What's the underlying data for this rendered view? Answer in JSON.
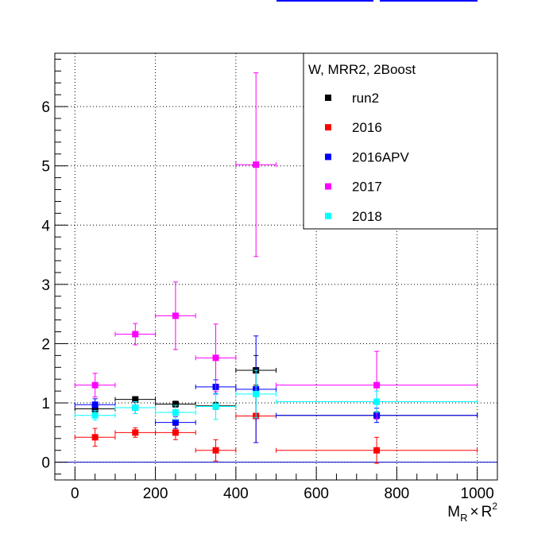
{
  "chart_data": {
    "type": "scatter",
    "legend": {
      "title": "W, MRR2, 2Boost",
      "placement": "top-right"
    },
    "xlabel": {
      "main": "M",
      "sub": "R",
      "times": "×",
      "var": "R",
      "sup": "2"
    },
    "ylabel": "",
    "xlim": [
      -50,
      1050
    ],
    "ylim": [
      -0.3,
      6.9
    ],
    "x_ticks": [
      0,
      200,
      400,
      600,
      800,
      1000
    ],
    "y_ticks": [
      0,
      1,
      2,
      3,
      4,
      5,
      6
    ],
    "grid": true,
    "reference_line": {
      "y": 0,
      "color": "#0000cc"
    },
    "bins": [
      [
        0,
        100
      ],
      [
        100,
        200
      ],
      [
        200,
        300
      ],
      [
        300,
        400
      ],
      [
        400,
        500
      ],
      [
        500,
        1000
      ]
    ],
    "series": [
      {
        "name": "run2",
        "color": "#000000",
        "values": [
          0.9,
          1.06,
          0.98,
          0.95,
          1.55,
          0.79
        ],
        "errors": [
          0.05,
          0.04,
          0.05,
          0.06,
          0.25,
          0.06
        ]
      },
      {
        "name": "2016",
        "color": "#ff0000",
        "values": [
          0.42,
          0.5,
          0.5,
          0.2,
          0.78,
          0.2
        ],
        "errors": [
          0.15,
          0.08,
          0.12,
          0.18,
          0.45,
          0.22
        ]
      },
      {
        "name": "2016APV",
        "color": "#0000ff",
        "values": [
          0.97,
          0.92,
          0.67,
          1.27,
          1.23,
          0.79
        ],
        "errors": [
          0.1,
          0.1,
          0.1,
          0.12,
          0.9,
          0.12
        ]
      },
      {
        "name": "2017",
        "color": "#ff00ff",
        "values": [
          1.3,
          2.16,
          2.47,
          1.76,
          5.02,
          1.3
        ],
        "errors": [
          0.2,
          0.18,
          0.57,
          0.57,
          1.55,
          0.57
        ]
      },
      {
        "name": "2018",
        "color": "#00ffff",
        "values": [
          0.79,
          0.92,
          0.84,
          0.94,
          1.15,
          1.02
        ],
        "errors": [
          0.08,
          0.1,
          0.12,
          0.22,
          0.4,
          0.18
        ]
      }
    ]
  }
}
